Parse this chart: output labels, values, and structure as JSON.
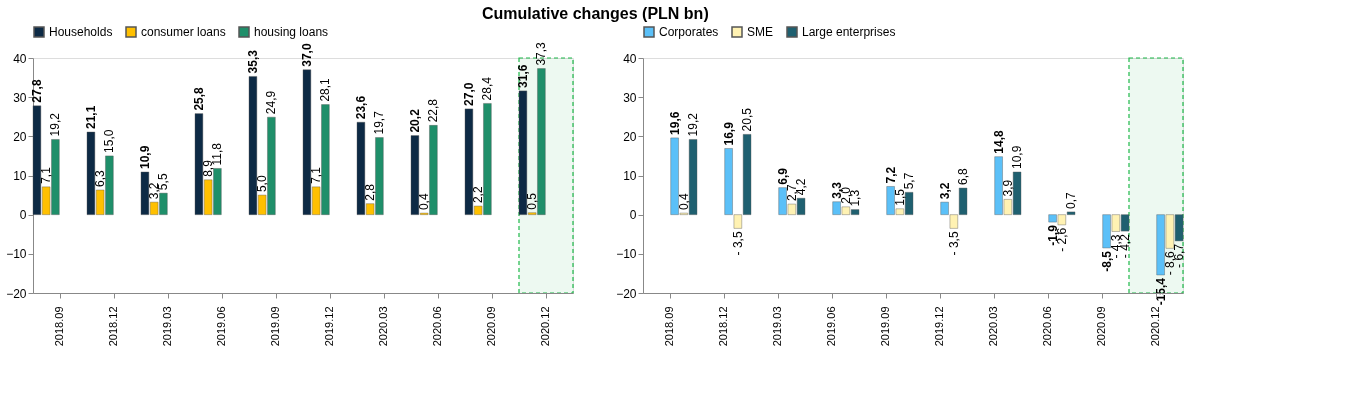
{
  "chart_data": [
    {
      "type": "bar",
      "title": "Cumulative changes (PLN bn)",
      "categories": [
        "2018.09",
        "2018.12",
        "2019.03",
        "2019.06",
        "2019.09",
        "2019.12",
        "2020.03",
        "2020.06",
        "2020.09",
        "2020.12"
      ],
      "series": [
        {
          "name": "Households",
          "color": "#0d2a45",
          "values": [
            27.8,
            21.1,
            10.9,
            25.8,
            35.3,
            37.0,
            23.6,
            20.2,
            27.0,
            31.6
          ],
          "value_labels": [
            "27,8",
            "21,1",
            "10,9",
            "25,8",
            "35,3",
            "37,0",
            "23,6",
            "20,2",
            "27,0",
            "31,6"
          ]
        },
        {
          "name": "consumer loans",
          "color": "#ffc000",
          "values": [
            7.1,
            6.3,
            3.2,
            8.9,
            5.0,
            7.1,
            2.8,
            0.4,
            2.2,
            0.5
          ],
          "value_labels": [
            "7,1",
            "6,3",
            "3,2",
            "8,9",
            "5,0",
            "7,1",
            "2,8",
            "0,4",
            "2,2",
            "0,5"
          ]
        },
        {
          "name": "housing loans",
          "color": "#1f8f6a",
          "values": [
            19.2,
            15.0,
            5.5,
            11.8,
            24.9,
            28.1,
            19.7,
            22.8,
            28.4,
            37.3
          ],
          "value_labels": [
            "19,2",
            "15,0",
            "5,5",
            "11,8",
            "24,9",
            "28,1",
            "19,7",
            "22,8",
            "28,4",
            "37,3"
          ]
        }
      ],
      "ylim": [
        -20,
        40
      ],
      "yticks": [
        -20,
        -10,
        0,
        10,
        20,
        30,
        40
      ],
      "grid": false,
      "legend": "top",
      "bands": [
        {
          "axis": "x",
          "from": "2020.12",
          "to": "2020.12",
          "color": "#1fb84a"
        }
      ]
    },
    {
      "type": "bar",
      "categories": [
        "2018.09",
        "2018.12",
        "2019.03",
        "2019.06",
        "2019.09",
        "2019.12",
        "2020.03",
        "2020.06",
        "2020.09",
        "2020.12"
      ],
      "series": [
        {
          "name": "Corporates",
          "color": "#5bc0f8",
          "values": [
            19.6,
            16.9,
            6.9,
            3.3,
            7.2,
            3.2,
            14.8,
            -1.9,
            -8.5,
            -15.4
          ],
          "value_labels": [
            "19,6",
            "16,9",
            "6,9",
            "3,3",
            "7,2",
            "3,2",
            "14,8",
            "-1,9",
            "-8,5",
            "-15,4"
          ]
        },
        {
          "name": "SME",
          "color": "#fff2b3",
          "values": [
            0.4,
            -3.5,
            2.7,
            2.0,
            1.5,
            -3.5,
            3.9,
            -2.6,
            -4.3,
            -8.6
          ],
          "value_labels": [
            "0,4",
            "- 3,5",
            "2,7",
            "2,0",
            "1,5",
            "- 3,5",
            "3,9",
            "- 2,6",
            "- 4,3",
            "- 8,6"
          ]
        },
        {
          "name": "Large enterprises",
          "color": "#1f6070",
          "values": [
            19.2,
            20.5,
            4.2,
            1.3,
            5.7,
            6.8,
            10.9,
            0.7,
            -4.2,
            -6.7
          ],
          "value_labels": [
            "19,2",
            "20,5",
            "4,2",
            "1,3",
            "5,7",
            "6,8",
            "10,9",
            "0,7",
            "- 4,2",
            "- 6,7"
          ]
        }
      ],
      "ylim": [
        -20,
        40
      ],
      "yticks": [
        -20,
        -10,
        0,
        10,
        20,
        30,
        40
      ],
      "grid": false,
      "legend": "top",
      "bands": [
        {
          "axis": "x",
          "from": "2020.12",
          "to": "2020.12",
          "color": "#1fb84a"
        }
      ]
    }
  ]
}
